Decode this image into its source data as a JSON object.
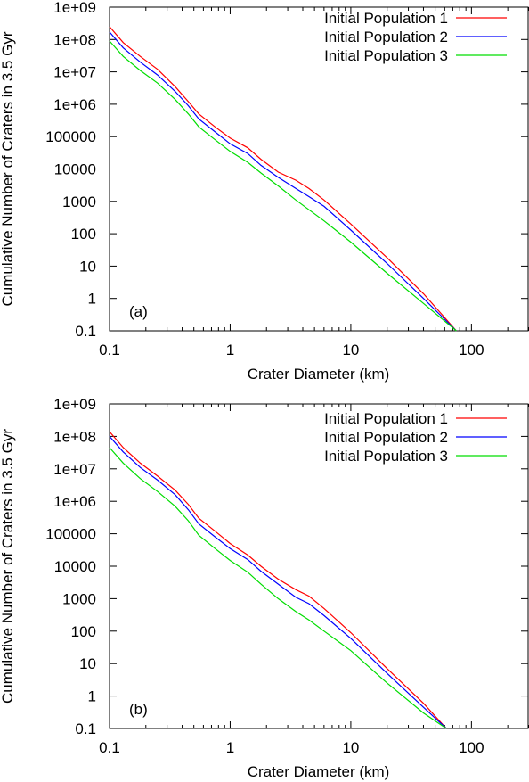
{
  "chart_data": [
    {
      "type": "line",
      "panel_label": "(a)",
      "xlabel": "Crater Diameter (km)",
      "ylabel": "Cumulative Number of Craters in 3.5 Gyr",
      "xscale": "log",
      "yscale": "log",
      "xlim": [
        0.1,
        300
      ],
      "ylim": [
        0.1,
        1000000000.0
      ],
      "x_ticks": [
        {
          "value": 0.1,
          "label": "0.1"
        },
        {
          "value": 1,
          "label": "1"
        },
        {
          "value": 10,
          "label": "10"
        },
        {
          "value": 100,
          "label": "100"
        }
      ],
      "y_ticks": [
        {
          "value": 0.1,
          "label": "0.1"
        },
        {
          "value": 1,
          "label": "1"
        },
        {
          "value": 10,
          "label": "10"
        },
        {
          "value": 100,
          "label": "100"
        },
        {
          "value": 1000,
          "label": "1000"
        },
        {
          "value": 10000,
          "label": "10000"
        },
        {
          "value": 100000,
          "label": "100000"
        },
        {
          "value": 1000000,
          "label": "1e+06"
        },
        {
          "value": 10000000,
          "label": "1e+07"
        },
        {
          "value": 100000000,
          "label": "1e+08"
        },
        {
          "value": 1000000000,
          "label": "1e+09"
        }
      ],
      "legend_position": "top-right",
      "series": [
        {
          "name": "Initial Population 1",
          "color": "#ff0000",
          "x": [
            0.1,
            0.13,
            0.18,
            0.25,
            0.35,
            0.45,
            0.55,
            0.75,
            1.0,
            1.4,
            1.8,
            2.5,
            3.5,
            4.5,
            6.0,
            10,
            20,
            40,
            75
          ],
          "y": [
            250000000.0,
            80000000.0,
            30000000.0,
            12000000.0,
            3500000.0,
            1200000.0,
            500000.0,
            200000.0,
            90000.0,
            45000.0,
            20000.0,
            8000,
            4500,
            2500,
            1100,
            200,
            18,
            1.4,
            0.1
          ]
        },
        {
          "name": "Initial Population 2",
          "color": "#0000ff",
          "x": [
            0.1,
            0.13,
            0.18,
            0.25,
            0.35,
            0.45,
            0.55,
            0.75,
            1.0,
            1.4,
            1.8,
            2.5,
            3.5,
            4.5,
            6.0,
            10,
            20,
            40,
            75
          ],
          "y": [
            170000000.0,
            55000000.0,
            20000000.0,
            8000000.0,
            2500000.0,
            900000.0,
            350000.0,
            140000.0,
            60000.0,
            30000.0,
            13000.0,
            5500,
            2500,
            1400,
            700,
            130,
            12,
            1,
            0.1
          ]
        },
        {
          "name": "Initial Population 3",
          "color": "#00dd00",
          "x": [
            0.1,
            0.13,
            0.18,
            0.25,
            0.35,
            0.45,
            0.55,
            0.75,
            1.0,
            1.4,
            1.8,
            2.5,
            3.5,
            4.5,
            6.0,
            10,
            20,
            40,
            75
          ],
          "y": [
            90000000.0,
            30000000.0,
            11000000.0,
            4500000.0,
            1400000.0,
            500000.0,
            200000.0,
            80000.0,
            35000.0,
            16000.0,
            7500,
            3000,
            1100,
            550,
            250,
            55,
            6,
            0.7,
            0.1
          ]
        }
      ]
    },
    {
      "type": "line",
      "panel_label": "(b)",
      "xlabel": "Crater Diameter (km)",
      "ylabel": "Cumulative Number of Craters in 3.5 Gyr",
      "xscale": "log",
      "yscale": "log",
      "xlim": [
        0.1,
        300
      ],
      "ylim": [
        0.1,
        1000000000.0
      ],
      "x_ticks": [
        {
          "value": 0.1,
          "label": "0.1"
        },
        {
          "value": 1,
          "label": "1"
        },
        {
          "value": 10,
          "label": "10"
        },
        {
          "value": 100,
          "label": "100"
        }
      ],
      "y_ticks": [
        {
          "value": 0.1,
          "label": "0.1"
        },
        {
          "value": 1,
          "label": "1"
        },
        {
          "value": 10,
          "label": "10"
        },
        {
          "value": 100,
          "label": "100"
        },
        {
          "value": 1000,
          "label": "1000"
        },
        {
          "value": 10000,
          "label": "10000"
        },
        {
          "value": 100000,
          "label": "100000"
        },
        {
          "value": 1000000,
          "label": "1e+06"
        },
        {
          "value": 10000000,
          "label": "1e+07"
        },
        {
          "value": 100000000,
          "label": "1e+08"
        },
        {
          "value": 1000000000,
          "label": "1e+09"
        }
      ],
      "legend_position": "top-right",
      "series": [
        {
          "name": "Initial Population 1",
          "color": "#ff0000",
          "x": [
            0.1,
            0.13,
            0.18,
            0.25,
            0.35,
            0.45,
            0.55,
            0.75,
            1.0,
            1.4,
            1.8,
            2.5,
            3.5,
            4.5,
            6.0,
            10,
            20,
            40,
            62
          ],
          "y": [
            140000000.0,
            45000000.0,
            15000000.0,
            6000000.0,
            2200000.0,
            800000.0,
            300000.0,
            120000.0,
            50000.0,
            22000.0,
            10000.0,
            4000,
            1900,
            1200,
            500,
            90,
            7,
            0.6,
            0.1
          ]
        },
        {
          "name": "Initial Population 2",
          "color": "#0000ff",
          "x": [
            0.1,
            0.13,
            0.18,
            0.25,
            0.35,
            0.45,
            0.55,
            0.75,
            1.0,
            1.4,
            1.8,
            2.5,
            3.5,
            4.5,
            6.0,
            10,
            20,
            40,
            62
          ],
          "y": [
            100000000.0,
            33000000.0,
            11000000.0,
            4500000.0,
            1600000.0,
            550000.0,
            200000.0,
            80000.0,
            35000.0,
            16000.0,
            7000,
            2800,
            1100,
            700,
            300,
            60,
            5,
            0.45,
            0.1
          ]
        },
        {
          "name": "Initial Population 3",
          "color": "#00dd00",
          "x": [
            0.1,
            0.13,
            0.18,
            0.25,
            0.35,
            0.45,
            0.55,
            0.75,
            1.0,
            1.4,
            1.8,
            2.5,
            3.5,
            4.5,
            6.0,
            10,
            20,
            40,
            62
          ],
          "y": [
            45000000.0,
            15000000.0,
            5000000.0,
            2000000.0,
            700000.0,
            250000.0,
            90000.0,
            35000.0,
            15000.0,
            6500,
            2800,
            1000,
            400,
            220,
            100,
            25,
            2.5,
            0.3,
            0.1
          ]
        }
      ]
    }
  ]
}
